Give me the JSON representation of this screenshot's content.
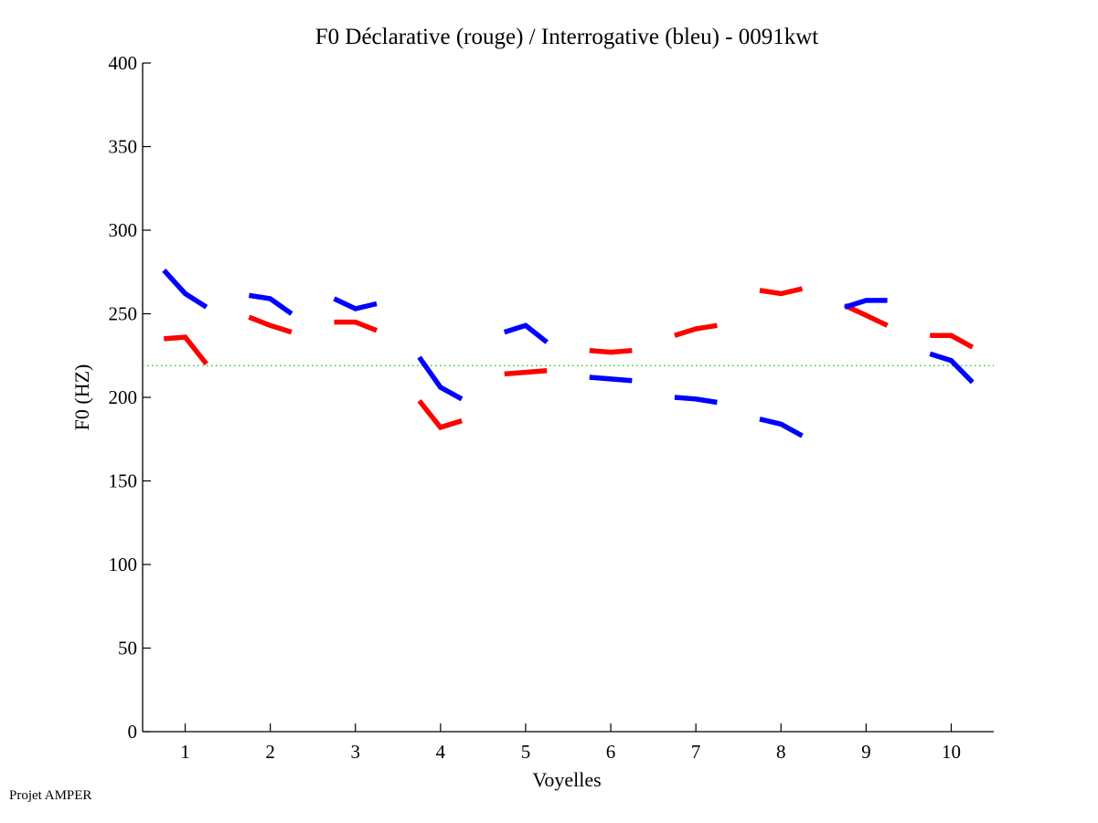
{
  "chart_data": {
    "type": "line",
    "title": "F0 Déclarative (rouge) / Interrogative (bleu) - 0091kwt",
    "xlabel": "Voyelles",
    "ylabel": "F0 (HZ)",
    "xlim": [
      0.5,
      10.5
    ],
    "ylim": [
      0,
      400
    ],
    "xticks": [
      1,
      2,
      3,
      4,
      5,
      6,
      7,
      8,
      9,
      10
    ],
    "xtick_labels": [
      "1",
      "2",
      "3",
      "4",
      "5",
      "6",
      "7",
      "8",
      "9",
      "10"
    ],
    "yticks": [
      0,
      50,
      100,
      150,
      200,
      250,
      300,
      350,
      400
    ],
    "ytick_labels": [
      "0",
      "50",
      "100",
      "150",
      "200",
      "250",
      "300",
      "350",
      "400"
    ],
    "grid": false,
    "legend": null,
    "point_offsets": [
      -0.25,
      0,
      0.25
    ],
    "reference_line": {
      "name": "mean F0",
      "value": 219,
      "color": "#00cc00",
      "style": "dotted"
    },
    "series": [
      {
        "name": "Déclarative",
        "color": "#ff0000",
        "segments": [
          {
            "vowel": 1,
            "values": [
              235,
              236,
              220
            ]
          },
          {
            "vowel": 2,
            "values": [
              248,
              243,
              239
            ]
          },
          {
            "vowel": 3,
            "values": [
              245,
              245,
              240
            ]
          },
          {
            "vowel": 4,
            "values": [
              198,
              182,
              186
            ]
          },
          {
            "vowel": 5,
            "values": [
              214,
              215,
              216
            ]
          },
          {
            "vowel": 6,
            "values": [
              228,
              227,
              228
            ]
          },
          {
            "vowel": 7,
            "values": [
              237,
              241,
              243
            ]
          },
          {
            "vowel": 8,
            "values": [
              264,
              262,
              265
            ]
          },
          {
            "vowel": 9,
            "values": [
              255,
              249,
              243
            ]
          },
          {
            "vowel": 10,
            "values": [
              237,
              237,
              230
            ]
          }
        ]
      },
      {
        "name": "Interrogative",
        "color": "#0000ff",
        "segments": [
          {
            "vowel": 1,
            "values": [
              276,
              262,
              254
            ]
          },
          {
            "vowel": 2,
            "values": [
              261,
              259,
              250
            ]
          },
          {
            "vowel": 3,
            "values": [
              259,
              253,
              256
            ]
          },
          {
            "vowel": 4,
            "values": [
              224,
              206,
              199
            ]
          },
          {
            "vowel": 5,
            "values": [
              239,
              243,
              233
            ]
          },
          {
            "vowel": 6,
            "values": [
              212,
              211,
              210
            ]
          },
          {
            "vowel": 7,
            "values": [
              200,
              199,
              197
            ]
          },
          {
            "vowel": 8,
            "values": [
              187,
              184,
              177
            ]
          },
          {
            "vowel": 9,
            "values": [
              254,
              258,
              258
            ]
          },
          {
            "vowel": 10,
            "values": [
              226,
              222,
              209
            ]
          }
        ]
      }
    ]
  },
  "footer": {
    "text": "Projet AMPER"
  }
}
